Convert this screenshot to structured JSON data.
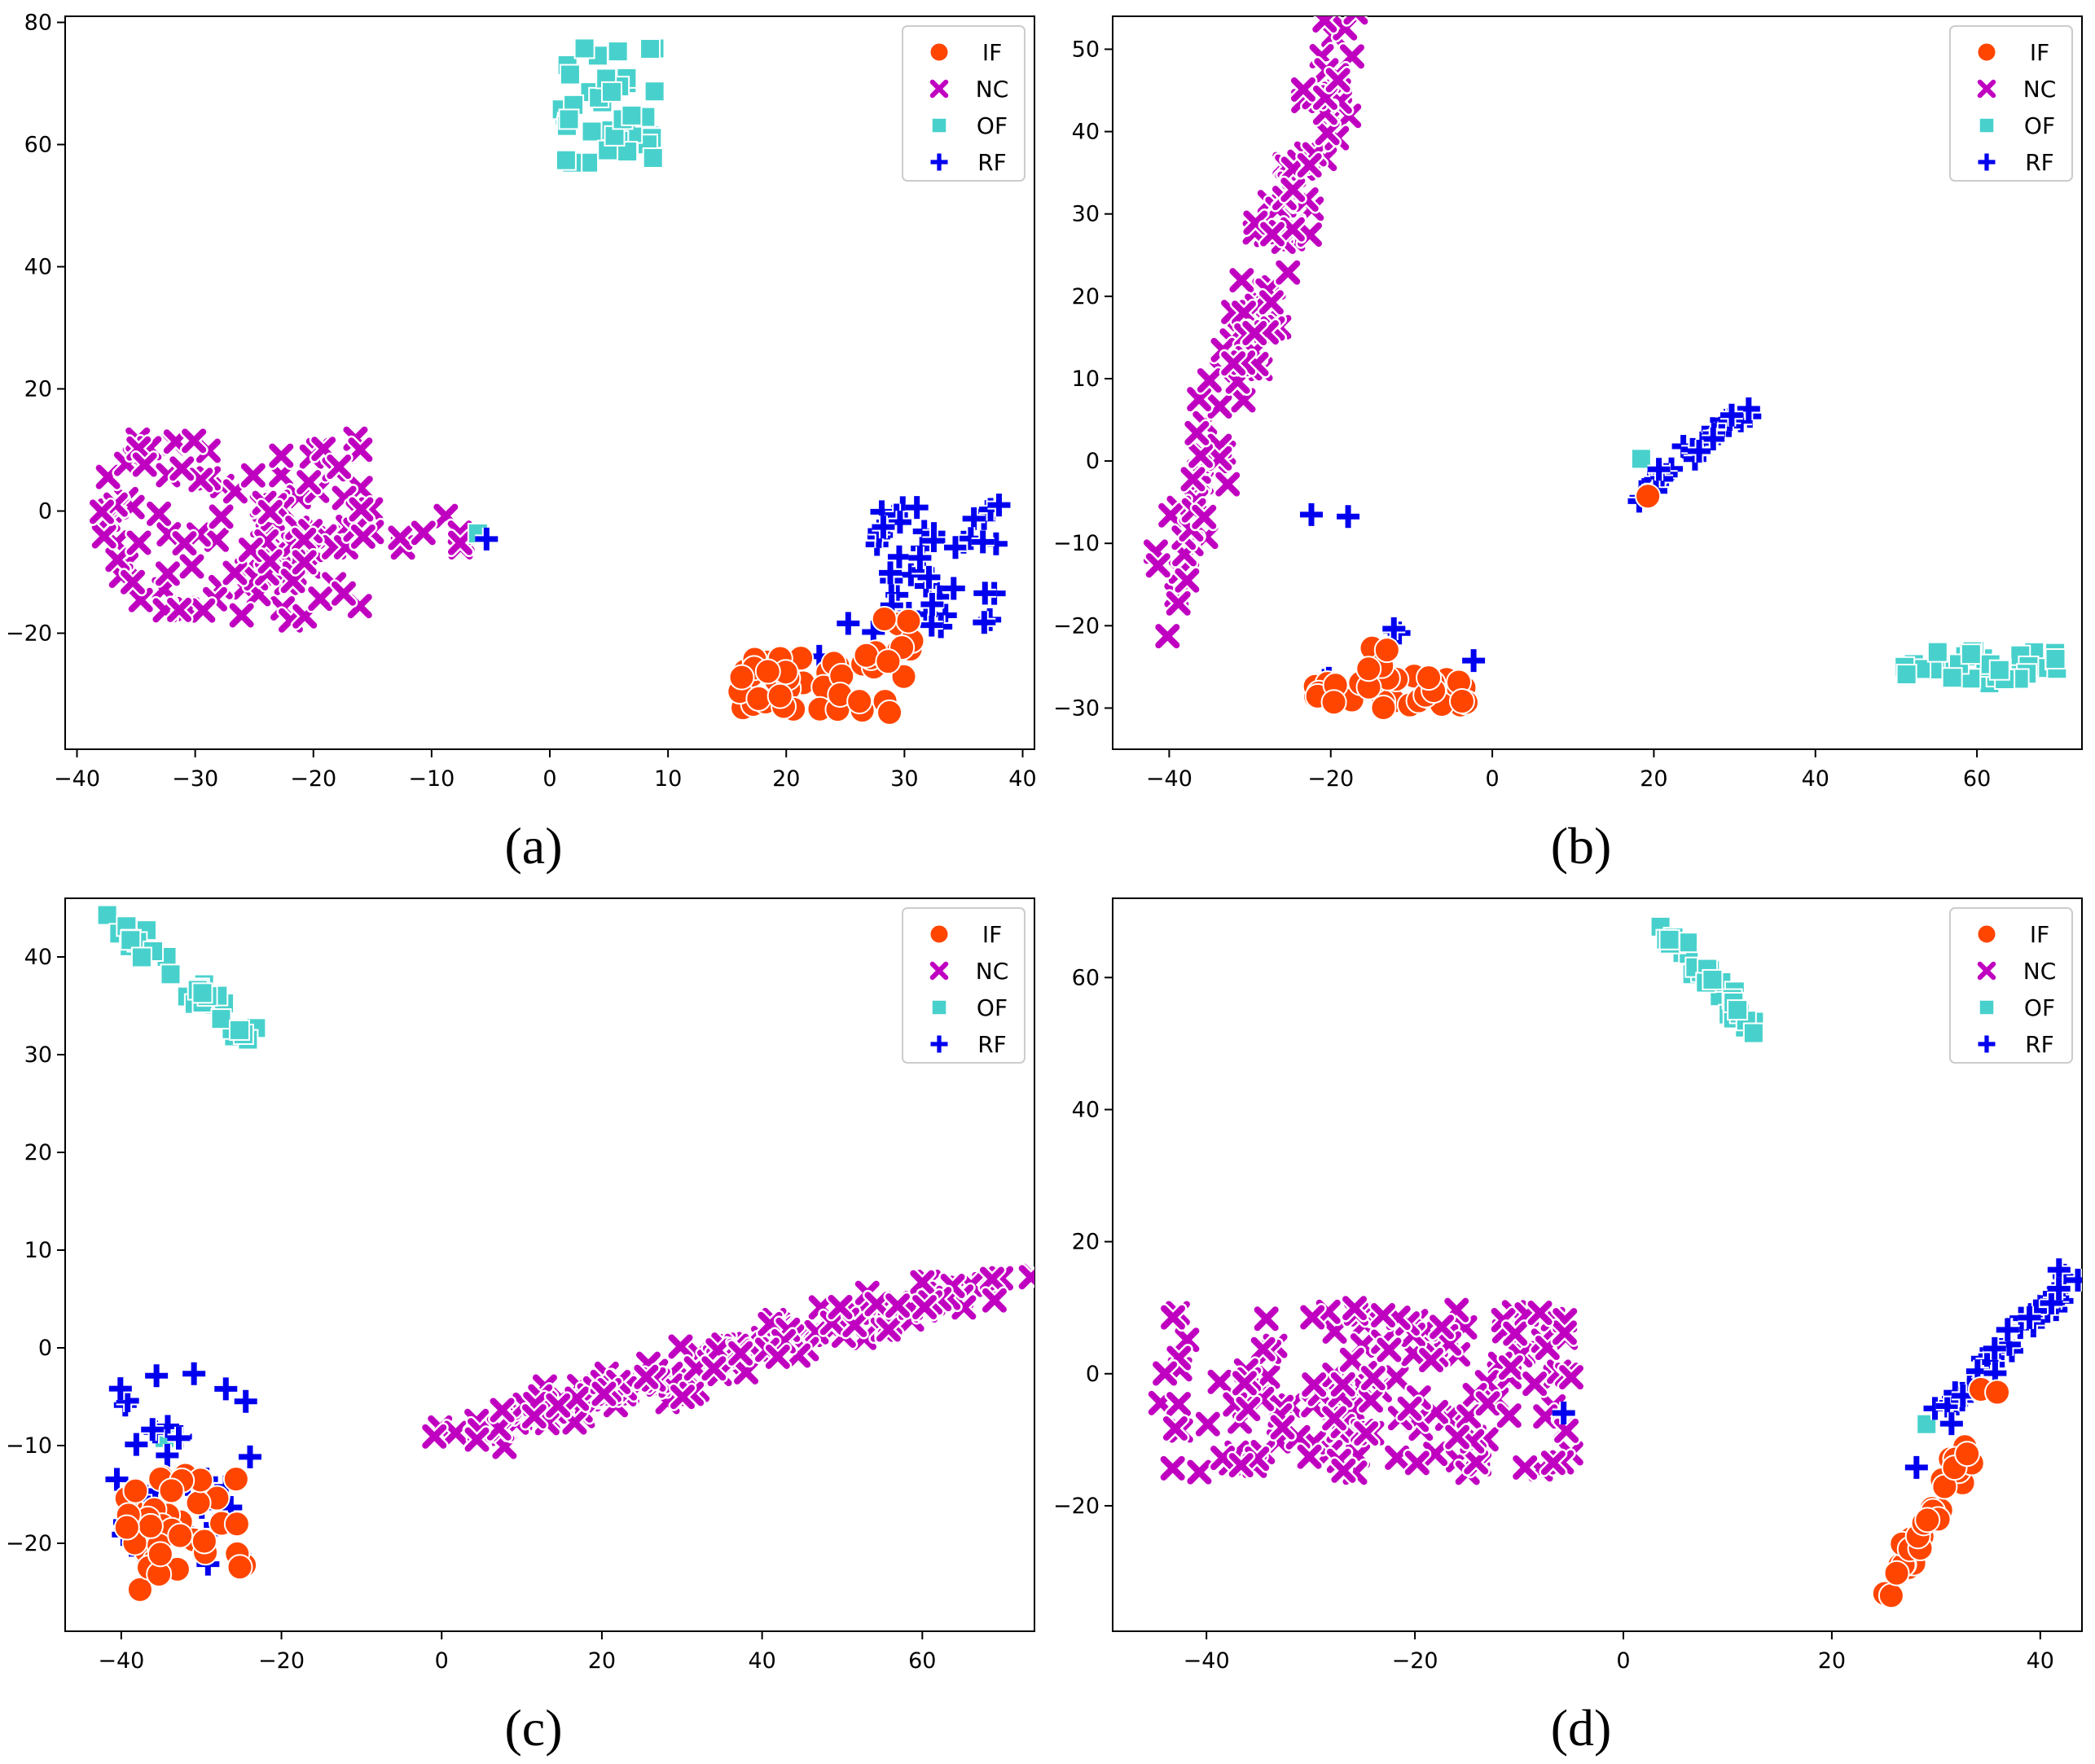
{
  "figure": {
    "legend_placement": "top-right",
    "series_style": {
      "IF": {
        "marker": "circle",
        "color": "#ff4500"
      },
      "NC": {
        "marker": "x",
        "color": "#c000c0"
      },
      "OF": {
        "marker": "square",
        "color": "#48d1cc"
      },
      "RF": {
        "marker": "plus",
        "color": "#0000ee"
      }
    }
  },
  "chart_data": [
    {
      "type": "scatter",
      "panel_label": "(a)",
      "xlim": [
        -41,
        41
      ],
      "ylim": [
        -39,
        81
      ],
      "xticks": [
        -40,
        -30,
        -20,
        -10,
        0,
        10,
        20,
        30,
        40
      ],
      "yticks": [
        -20,
        0,
        20,
        40,
        60,
        80
      ],
      "grid": false,
      "series": [
        {
          "name": "IF",
          "clusters": [
            {
              "x": [
                16,
                31
              ],
              "y": [
                -34,
                -24
              ],
              "n": 42
            },
            {
              "x": [
                25,
                31
              ],
              "y": [
                -25,
                -17
              ],
              "n": 10
            }
          ]
        },
        {
          "name": "NC",
          "clusters": [
            {
              "x": [
                -38,
                -16
              ],
              "y": [
                -18,
                12
              ],
              "n": 110
            },
            {
              "x": [
                -17,
                -7
              ],
              "y": [
                -6,
                1
              ],
              "n": 14
            }
          ]
        },
        {
          "name": "OF",
          "clusters": [
            {
              "x": [
                1,
                9
              ],
              "y": [
                57,
                76
              ],
              "n": 40
            },
            {
              "x": [
                -7,
                -6
              ],
              "y": [
                -4,
                -3
              ],
              "n": 1
            }
          ]
        },
        {
          "name": "RF",
          "clusters": [
            {
              "x": [
                27,
                38
              ],
              "y": [
                -20,
                1
              ],
              "n": 48
            },
            {
              "x": [
                -6,
                -5
              ],
              "y": [
                -5,
                -4
              ],
              "n": 1
            },
            {
              "x": [
                22,
                23
              ],
              "y": [
                -24,
                -23
              ],
              "n": 1
            },
            {
              "x": [
                25,
                26
              ],
              "y": [
                -19,
                -18
              ],
              "n": 1
            }
          ]
        }
      ]
    },
    {
      "type": "scatter",
      "panel_label": "(b)",
      "xlim": [
        -47,
        73
      ],
      "ylim": [
        -35,
        54
      ],
      "xticks": [
        -40,
        -20,
        0,
        20,
        40,
        60
      ],
      "yticks": [
        -30,
        -20,
        -10,
        0,
        10,
        20,
        30,
        40,
        50
      ],
      "grid": false,
      "series": [
        {
          "name": "IF",
          "clusters": [
            {
              "x": [
                -22,
                -3
              ],
              "y": [
                -30,
                -26
              ],
              "n": 38
            },
            {
              "x": [
                -16,
                -12
              ],
              "y": [
                -26,
                -21
              ],
              "n": 4
            },
            {
              "x": [
                19,
                20
              ],
              "y": [
                -6,
                -4
              ],
              "n": 1
            }
          ]
        },
        {
          "name": "NC",
          "clusters": [
            {
              "x": [
                -41,
                -18
              ],
              "y": [
                -16,
                52
              ],
              "n": 130,
              "path": "diagonal"
            }
          ]
        },
        {
          "name": "OF",
          "clusters": [
            {
              "x": [
                51,
                70
              ],
              "y": [
                -27,
                -23
              ],
              "n": 40
            },
            {
              "x": [
                18,
                19
              ],
              "y": [
                0,
                1
              ],
              "n": 1
            }
          ]
        },
        {
          "name": "RF",
          "clusters": [
            {
              "x": [
                18,
                31
              ],
              "y": [
                -4,
                6
              ],
              "n": 28,
              "path": "diagonal"
            },
            {
              "x": [
                -23,
                -22
              ],
              "y": [
                -7,
                -6
              ],
              "n": 1
            },
            {
              "x": [
                -18,
                -17
              ],
              "y": [
                -7,
                -6
              ],
              "n": 1
            },
            {
              "x": [
                -13,
                -11
              ],
              "y": [
                -21,
                -19
              ],
              "n": 3
            },
            {
              "x": [
                -21,
                -20
              ],
              "y": [
                -27,
                -26
              ],
              "n": 2
            },
            {
              "x": [
                -3,
                -2
              ],
              "y": [
                -25,
                -24
              ],
              "n": 1
            }
          ]
        }
      ]
    },
    {
      "type": "scatter",
      "panel_label": "(c)",
      "xlim": [
        -47,
        74
      ],
      "ylim": [
        -29,
        46
      ],
      "xticks": [
        -40,
        -20,
        0,
        20,
        40,
        60
      ],
      "yticks": [
        -20,
        -10,
        0,
        10,
        20,
        30,
        40
      ],
      "grid": false,
      "series": [
        {
          "name": "IF",
          "clusters": [
            {
              "x": [
                -41,
                -24
              ],
              "y": [
                -25,
                -13
              ],
              "n": 40
            }
          ]
        },
        {
          "name": "NC",
          "clusters": [
            {
              "x": [
                2,
                69
              ],
              "y": [
                -9,
                7
              ],
              "n": 150,
              "path": "diagonal"
            }
          ]
        },
        {
          "name": "OF",
          "clusters": [
            {
              "x": [
                -41,
                -24
              ],
              "y": [
                32,
                44
              ],
              "n": 32,
              "path": "diagonal-down"
            },
            {
              "x": [
                -35,
                -34
              ],
              "y": [
                -10,
                -9
              ],
              "n": 1
            }
          ]
        },
        {
          "name": "RF",
          "clusters": [
            {
              "x": [
                -42,
                -23
              ],
              "y": [
                -23,
                -2
              ],
              "n": 36
            }
          ]
        }
      ]
    },
    {
      "type": "scatter",
      "panel_label": "(d)",
      "xlim": [
        -49,
        44
      ],
      "ylim": [
        -39,
        72
      ],
      "xticks": [
        -40,
        -20,
        0,
        20,
        40
      ],
      "yticks": [
        -20,
        0,
        20,
        40,
        60
      ],
      "grid": false,
      "series": [
        {
          "name": "IF",
          "clusters": [
            {
              "x": [
                25,
                33
              ],
              "y": [
                -34,
                -12
              ],
              "n": 40,
              "path": "diagonal"
            },
            {
              "x": [
                34,
                36
              ],
              "y": [
                -4,
                -2
              ],
              "n": 2
            }
          ]
        },
        {
          "name": "NC",
          "clusters": [
            {
              "x": [
                -45,
                -5
              ],
              "y": [
                -15,
                10
              ],
              "n": 160
            }
          ]
        },
        {
          "name": "OF",
          "clusters": [
            {
              "x": [
                4,
                13
              ],
              "y": [
                51,
                67
              ],
              "n": 34,
              "path": "diagonal-down"
            },
            {
              "x": [
                29,
                30
              ],
              "y": [
                -8,
                -6
              ],
              "n": 1
            }
          ]
        },
        {
          "name": "RF",
          "clusters": [
            {
              "x": [
                30,
                43
              ],
              "y": [
                -7,
                15
              ],
              "n": 50,
              "path": "diagonal"
            },
            {
              "x": [
                -6,
                -3
              ],
              "y": [
                -6,
                -4
              ],
              "n": 1
            },
            {
              "x": [
                28,
                29
              ],
              "y": [
                -16,
                -14
              ],
              "n": 1
            }
          ]
        }
      ]
    }
  ]
}
